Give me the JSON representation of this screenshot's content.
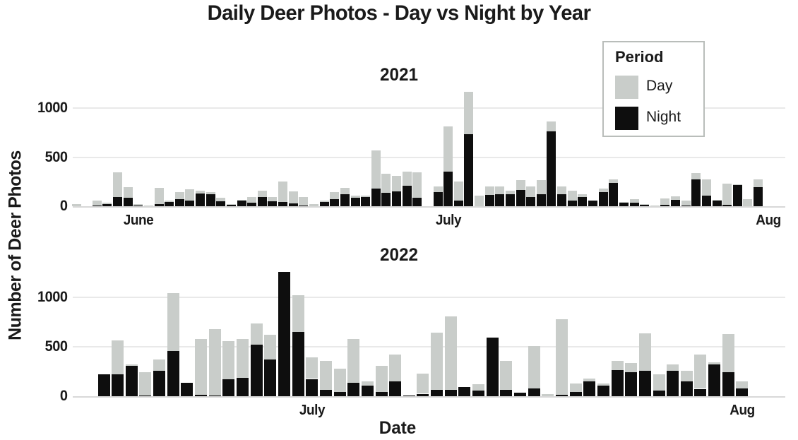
{
  "title": "Daily Deer Photos - Day vs Night by Year",
  "xlabel": "Date",
  "ylabel": "Number of Deer Photos",
  "legend": {
    "title": "Period",
    "items": [
      {
        "label": "Day",
        "color": "#c9cdca"
      },
      {
        "label": "Night",
        "color": "#0e0e0e"
      }
    ]
  },
  "chart_data": [
    {
      "type": "bar",
      "stacked": true,
      "facet": "2021",
      "grid": "horizontal",
      "ylim": [
        0,
        1250
      ],
      "y_ticks": [
        0,
        500,
        1000
      ],
      "x_ticks": [
        {
          "label": "June",
          "day_index": 6
        },
        {
          "label": "July",
          "day_index": 36
        },
        {
          "label": "Aug",
          "day_index": 67
        }
      ],
      "series_names": [
        "Day",
        "Night"
      ],
      "bars_format": [
        "date",
        "day_value",
        "night_value"
      ],
      "bars": [
        [
          "May 26",
          25,
          0
        ],
        [
          "May 27",
          0,
          0
        ],
        [
          "May 28",
          50,
          10
        ],
        [
          "May 29",
          10,
          25
        ],
        [
          "May 30",
          250,
          95
        ],
        [
          "May 31",
          110,
          85
        ],
        [
          "Jun 1",
          20,
          5
        ],
        [
          "Jun 2",
          10,
          0
        ],
        [
          "Jun 3",
          165,
          25
        ],
        [
          "Jun 4",
          10,
          45
        ],
        [
          "Jun 5",
          75,
          70
        ],
        [
          "Jun 6",
          110,
          60
        ],
        [
          "Jun 7",
          30,
          130
        ],
        [
          "Jun 8",
          25,
          120
        ],
        [
          "Jun 9",
          35,
          50
        ],
        [
          "Jun 10",
          10,
          15
        ],
        [
          "Jun 11",
          5,
          60
        ],
        [
          "Jun 12",
          55,
          35
        ],
        [
          "Jun 13",
          60,
          95
        ],
        [
          "Jun 14",
          40,
          50
        ],
        [
          "Jun 15",
          215,
          40
        ],
        [
          "Jun 16",
          120,
          30
        ],
        [
          "Jun 17",
          85,
          5
        ],
        [
          "Jun 18",
          20,
          0
        ],
        [
          "Jun 19",
          15,
          45
        ],
        [
          "Jun 20",
          75,
          70
        ],
        [
          "Jun 21",
          65,
          120
        ],
        [
          "Jun 22",
          20,
          85
        ],
        [
          "Jun 23",
          15,
          90
        ],
        [
          "Jun 24",
          390,
          180
        ],
        [
          "Jun 25",
          190,
          140
        ],
        [
          "Jun 26",
          160,
          150
        ],
        [
          "Jun 27",
          145,
          210
        ],
        [
          "Jun 28",
          260,
          85
        ],
        [
          "Jun 29",
          0,
          0
        ],
        [
          "Jun 30",
          60,
          145
        ],
        [
          "Jul 1",
          455,
          355
        ],
        [
          "Jul 2",
          190,
          60
        ],
        [
          "Jul 3",
          430,
          735
        ],
        [
          "Jul 4",
          105,
          0
        ],
        [
          "Jul 5",
          90,
          115
        ],
        [
          "Jul 6",
          75,
          125
        ],
        [
          "Jul 7",
          30,
          125
        ],
        [
          "Jul 8",
          100,
          165
        ],
        [
          "Jul 9",
          110,
          90
        ],
        [
          "Jul 10",
          140,
          125
        ],
        [
          "Jul 11",
          105,
          760
        ],
        [
          "Jul 12",
          75,
          125
        ],
        [
          "Jul 13",
          100,
          60
        ],
        [
          "Jul 14",
          30,
          90
        ],
        [
          "Jul 15",
          0,
          60
        ],
        [
          "Jul 16",
          35,
          145
        ],
        [
          "Jul 17",
          35,
          240
        ],
        [
          "Jul 18",
          5,
          35
        ],
        [
          "Jul 19",
          35,
          35
        ],
        [
          "Jul 20",
          5,
          15
        ],
        [
          "Jul 21",
          10,
          0
        ],
        [
          "Jul 22",
          65,
          15
        ],
        [
          "Jul 23",
          35,
          65
        ],
        [
          "Jul 24",
          55,
          5
        ],
        [
          "Jul 25",
          60,
          275
        ],
        [
          "Jul 26",
          165,
          105
        ],
        [
          "Jul 27",
          5,
          60
        ],
        [
          "Jul 28",
          215,
          15
        ],
        [
          "Jul 29",
          5,
          220
        ],
        [
          "Jul 30",
          70,
          0
        ],
        [
          "Jul 31",
          75,
          195
        ]
      ]
    },
    {
      "type": "bar",
      "stacked": true,
      "facet": "2022",
      "grid": "horizontal",
      "ylim": [
        0,
        1260
      ],
      "y_ticks": [
        0,
        500,
        1000
      ],
      "x_ticks": [
        {
          "label": "July",
          "day_index": 15
        },
        {
          "label": "Aug",
          "day_index": 46
        }
      ],
      "series_names": [
        "Day",
        "Night"
      ],
      "bars_format": [
        "date",
        "day_value",
        "night_value"
      ],
      "bars": [
        [
          "Jun 16",
          0,
          220
        ],
        [
          "Jun 17",
          345,
          220
        ],
        [
          "Jun 18",
          15,
          310
        ],
        [
          "Jun 19",
          240,
          5
        ],
        [
          "Jun 20",
          120,
          255
        ],
        [
          "Jun 21",
          580,
          460
        ],
        [
          "Jun 22",
          0,
          135
        ],
        [
          "Jun 23",
          565,
          15
        ],
        [
          "Jun 24",
          670,
          10
        ],
        [
          "Jun 25",
          385,
          170
        ],
        [
          "Jun 26",
          395,
          185
        ],
        [
          "Jun 27",
          215,
          520
        ],
        [
          "Jun 28",
          250,
          370
        ],
        [
          "Jun 29",
          0,
          1255
        ],
        [
          "Jun 30",
          370,
          650
        ],
        [
          "Jul 1",
          220,
          175
        ],
        [
          "Jul 2",
          295,
          65
        ],
        [
          "Jul 3",
          235,
          45
        ],
        [
          "Jul 4",
          445,
          135
        ],
        [
          "Jul 5",
          45,
          105
        ],
        [
          "Jul 6",
          265,
          40
        ],
        [
          "Jul 7",
          275,
          150
        ],
        [
          "Jul 8",
          0,
          10
        ],
        [
          "Jul 9",
          205,
          25
        ],
        [
          "Jul 10",
          580,
          65
        ],
        [
          "Jul 11",
          745,
          65
        ],
        [
          "Jul 12",
          0,
          90
        ],
        [
          "Jul 13",
          70,
          55
        ],
        [
          "Jul 14",
          0,
          595
        ],
        [
          "Jul 15",
          290,
          65
        ],
        [
          "Jul 16",
          0,
          35
        ],
        [
          "Jul 17",
          425,
          80
        ],
        [
          "Jul 18",
          20,
          0
        ],
        [
          "Jul 19",
          765,
          15
        ],
        [
          "Jul 20",
          90,
          40
        ],
        [
          "Jul 21",
          30,
          150
        ],
        [
          "Jul 22",
          20,
          110
        ],
        [
          "Jul 23",
          90,
          265
        ],
        [
          "Jul 24",
          90,
          245
        ],
        [
          "Jul 25",
          375,
          260
        ],
        [
          "Jul 26",
          165,
          55
        ],
        [
          "Jul 27",
          70,
          255
        ],
        [
          "Jul 28",
          105,
          150
        ],
        [
          "Jul 29",
          345,
          75
        ],
        [
          "Jul 30",
          20,
          320
        ],
        [
          "Jul 31",
          385,
          245
        ],
        [
          "Aug 1",
          70,
          80
        ]
      ]
    }
  ]
}
